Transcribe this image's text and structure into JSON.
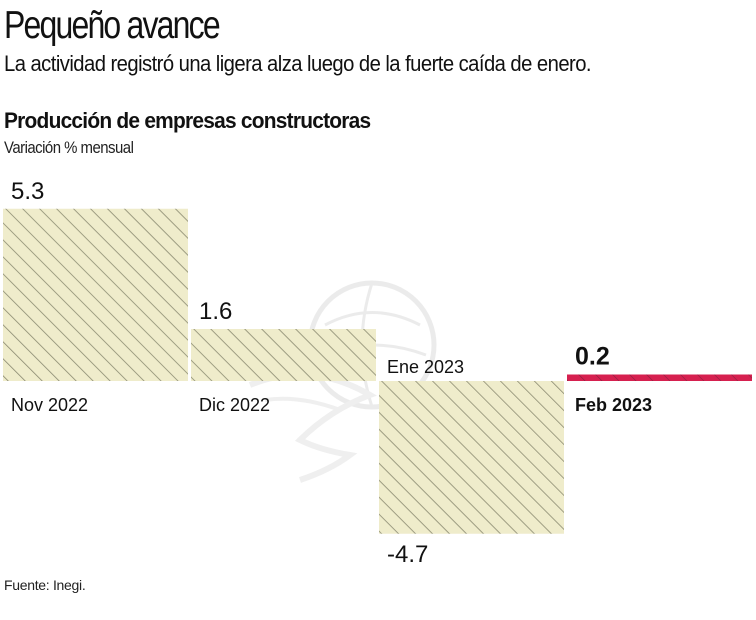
{
  "header": {
    "title": "Pequeño avance",
    "subtitle": "La actividad registró una ligera alza luego de la fuerte caída de enero."
  },
  "footer": {
    "source": "Fuente: Inegi."
  },
  "colors": {
    "bar_fill": "#efeccb",
    "bar_stripe": "#8a8a70",
    "highlight": "#d6204f",
    "text": "#111111",
    "watermark": "#e6e6e6"
  },
  "watermark": {
    "icon": "eagle-globe-logo-icon"
  },
  "chart_data": {
    "type": "bar",
    "title": "Producción de empresas constructoras",
    "subtitle": "Variación % mensual",
    "xlabel": "",
    "ylabel": "Variación % mensual",
    "categories": [
      "Nov 2022",
      "Dic 2022",
      "Ene 2023",
      "Feb 2023"
    ],
    "values": [
      5.3,
      1.6,
      -4.7,
      0.2
    ],
    "value_labels": [
      "5.3",
      "1.6",
      "-4.7",
      "0.2"
    ],
    "highlight_index": 3,
    "ylim": [
      -4.7,
      5.3
    ],
    "grid": false,
    "legend": "none"
  }
}
